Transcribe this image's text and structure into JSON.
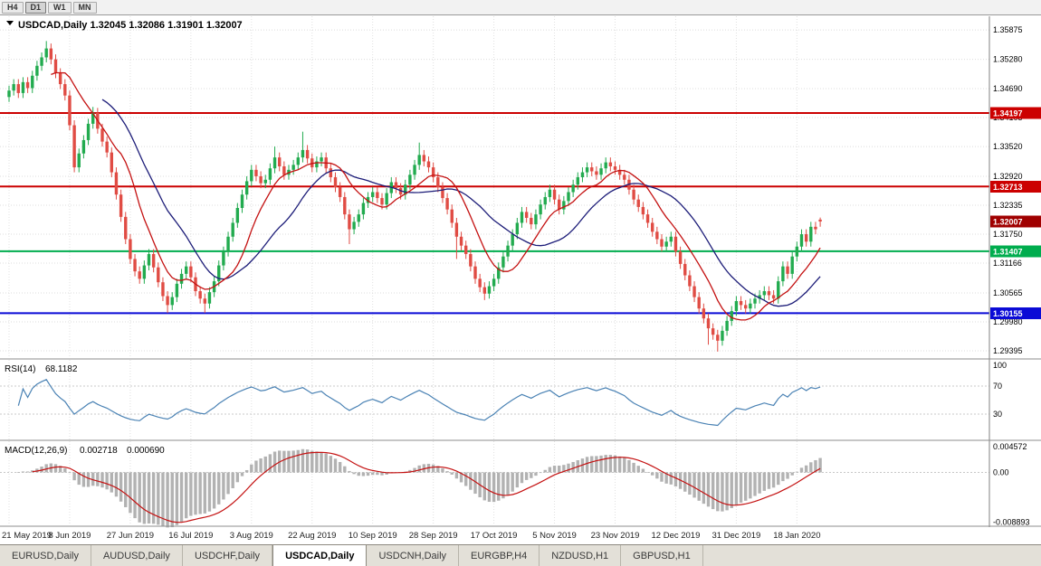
{
  "toolbar": {
    "timeframes": [
      {
        "label": "H4",
        "active": false
      },
      {
        "label": "D1",
        "active": true
      },
      {
        "label": "W1",
        "active": false
      },
      {
        "label": "MN",
        "active": false
      }
    ]
  },
  "colors": {
    "up": "#22ab4f",
    "down": "#e04c44",
    "ma_fast": "#c41111",
    "ma_slow": "#1c1c78",
    "grid": "#dcdcdc",
    "rsi_line": "#4a82b4",
    "macd_hist": "#b2b2b2",
    "macd_signal": "#c41111",
    "resistance": "#cc0000",
    "support_green": "#00ad4e",
    "support_blue": "#0b0bd6",
    "current_badge": "#a00000"
  },
  "chart_data": {
    "type": "candlestick",
    "title": "USDCAD,Daily",
    "quote_line": "USDCAD,Daily 1.32045 1.32086 1.31901 1.32007",
    "ohlc_quote": {
      "open": "1.32045",
      "high": "1.32086",
      "low": "1.31901",
      "close": "1.32007"
    },
    "x_labels": [
      "21 May 2019",
      "8 Jun 2019",
      "27 Jun 2019",
      "16 Jul 2019",
      "3 Aug 2019",
      "22 Aug 2019",
      "10 Sep 2019",
      "28 Sep 2019",
      "17 Oct 2019",
      "5 Nov 2019",
      "23 Nov 2019",
      "12 Dec 2019",
      "31 Dec 2019",
      "18 Jan 2020"
    ],
    "label_step": 13,
    "price_axis": {
      "min": 1.2925,
      "max": 1.3615,
      "ticks": [
        "1.35875",
        "1.35280",
        "1.34690",
        "1.34105",
        "1.33520",
        "1.32920",
        "1.32335",
        "1.31750",
        "1.31166",
        "1.30565",
        "1.29980",
        "1.29395"
      ]
    },
    "first_open": 1.3452,
    "default_wick": 0.001,
    "closes": [
      1.3465,
      1.3478,
      1.346,
      1.3482,
      1.347,
      1.3495,
      1.3515,
      1.3532,
      1.355,
      1.3528,
      1.35,
      1.3478,
      1.3455,
      1.3395,
      1.331,
      1.3338,
      1.3365,
      1.3398,
      1.342,
      1.3388,
      1.3362,
      1.334,
      1.33,
      1.3255,
      1.321,
      1.3165,
      1.3125,
      1.31,
      1.3085,
      1.3112,
      1.3135,
      1.3108,
      1.3078,
      1.305,
      1.3032,
      1.3048,
      1.3075,
      1.3095,
      1.311,
      1.3088,
      1.306,
      1.3045,
      1.3035,
      1.3058,
      1.308,
      1.3112,
      1.314,
      1.317,
      1.3198,
      1.3228,
      1.3255,
      1.3282,
      1.3305,
      1.3292,
      1.3278,
      1.3285,
      1.3308,
      1.333,
      1.3312,
      1.3295,
      1.3305,
      1.3315,
      1.333,
      1.3345,
      1.3328,
      1.331,
      1.3322,
      1.333,
      1.3308,
      1.329,
      1.327,
      1.325,
      1.3215,
      1.3185,
      1.32,
      1.3215,
      1.3238,
      1.325,
      1.326,
      1.3248,
      1.3235,
      1.3258,
      1.328,
      1.3268,
      1.3255,
      1.3275,
      1.3295,
      1.3315,
      1.3335,
      1.3322,
      1.331,
      1.329,
      1.327,
      1.3248,
      1.3225,
      1.3198,
      1.317,
      1.3152,
      1.3135,
      1.311,
      1.3085,
      1.3068,
      1.3055,
      1.307,
      1.3085,
      1.3108,
      1.313,
      1.3152,
      1.3175,
      1.3198,
      1.322,
      1.3208,
      1.3195,
      1.3215,
      1.3235,
      1.325,
      1.3265,
      1.3245,
      1.3225,
      1.3242,
      1.326,
      1.3275,
      1.329,
      1.33,
      1.331,
      1.3302,
      1.3295,
      1.3308,
      1.332,
      1.3312,
      1.3305,
      1.3295,
      1.3285,
      1.3265,
      1.3245,
      1.323,
      1.3215,
      1.3198,
      1.318,
      1.3165,
      1.315,
      1.316,
      1.317,
      1.314,
      1.3115,
      1.3092,
      1.307,
      1.3048,
      1.3025,
      1.3005,
      1.2985,
      1.2972,
      1.296,
      1.298,
      1.3,
      1.302,
      1.304,
      1.3032,
      1.3025,
      1.3035,
      1.3045,
      1.3052,
      1.306,
      1.3052,
      1.3045,
      1.308,
      1.311,
      1.3095,
      1.313,
      1.315,
      1.3175,
      1.316,
      1.319,
      1.3185,
      1.32007
    ],
    "wick_overrides": {
      "8": {
        "high": 1.3565
      },
      "18": {
        "high": 1.3432
      },
      "34": {
        "low": 1.3016
      },
      "42": {
        "low": 1.3016
      },
      "57": {
        "high": 1.3352
      },
      "63": {
        "high": 1.3382
      },
      "73": {
        "low": 1.3155
      },
      "88": {
        "high": 1.336
      },
      "96": {
        "low": 1.3125
      },
      "102": {
        "low": 1.3042
      },
      "150": {
        "low": 1.2952
      },
      "152": {
        "low": 1.2938
      }
    },
    "last_candle": {
      "open": 1.32045,
      "high": 1.32086,
      "low": 1.31901,
      "close": 1.32007
    },
    "hlines": [
      {
        "price": 1.34197,
        "label": "1.34197",
        "color": "#cc0000"
      },
      {
        "price": 1.32713,
        "label": "1.32713",
        "color": "#cc0000"
      },
      {
        "price": 1.31407,
        "label": "1.31407",
        "color": "#00ad4e"
      },
      {
        "price": 1.30155,
        "label": "1.30155",
        "color": "#0b0bd6"
      }
    ],
    "current_price": {
      "price": 1.32007,
      "label": "1.32007",
      "color": "#a00000"
    },
    "indicators": {
      "rsi": {
        "label": "RSI(14)",
        "value": "68.1182",
        "period": 14,
        "levels": [
          100,
          70,
          30
        ]
      },
      "macd": {
        "label": "MACD(12,26,9)",
        "value_main": "0.002718",
        "value_signal": "0.000690",
        "axis_labels": [
          "0.004572",
          "0.00",
          "-0.008893"
        ]
      }
    }
  },
  "tabs": [
    {
      "label": "EURUSD,Daily",
      "active": false
    },
    {
      "label": "AUDUSD,Daily",
      "active": false
    },
    {
      "label": "USDCHF,Daily",
      "active": false
    },
    {
      "label": "USDCAD,Daily",
      "active": true
    },
    {
      "label": "USDCNH,Daily",
      "active": false
    },
    {
      "label": "EURGBP,H4",
      "active": false
    },
    {
      "label": "NZDUSD,H1",
      "active": false
    },
    {
      "label": "GBPUSD,H1",
      "active": false
    }
  ]
}
